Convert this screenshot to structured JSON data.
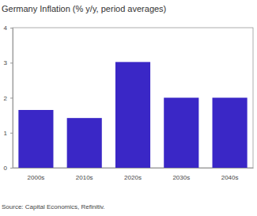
{
  "chart_data": {
    "type": "bar",
    "title": "Germany Inflation (% y/y, period averages)",
    "source": "Source: Capital Economics, Refinitiv.",
    "categories": [
      "2000s",
      "2010s",
      "2020s",
      "2030s",
      "2040s"
    ],
    "values": [
      1.65,
      1.42,
      3.02,
      2.0,
      2.0
    ],
    "color": "#3a27c6",
    "ylim": [
      0,
      4
    ],
    "yticks": [
      0,
      1,
      2,
      3,
      4
    ],
    "grid": false
  }
}
